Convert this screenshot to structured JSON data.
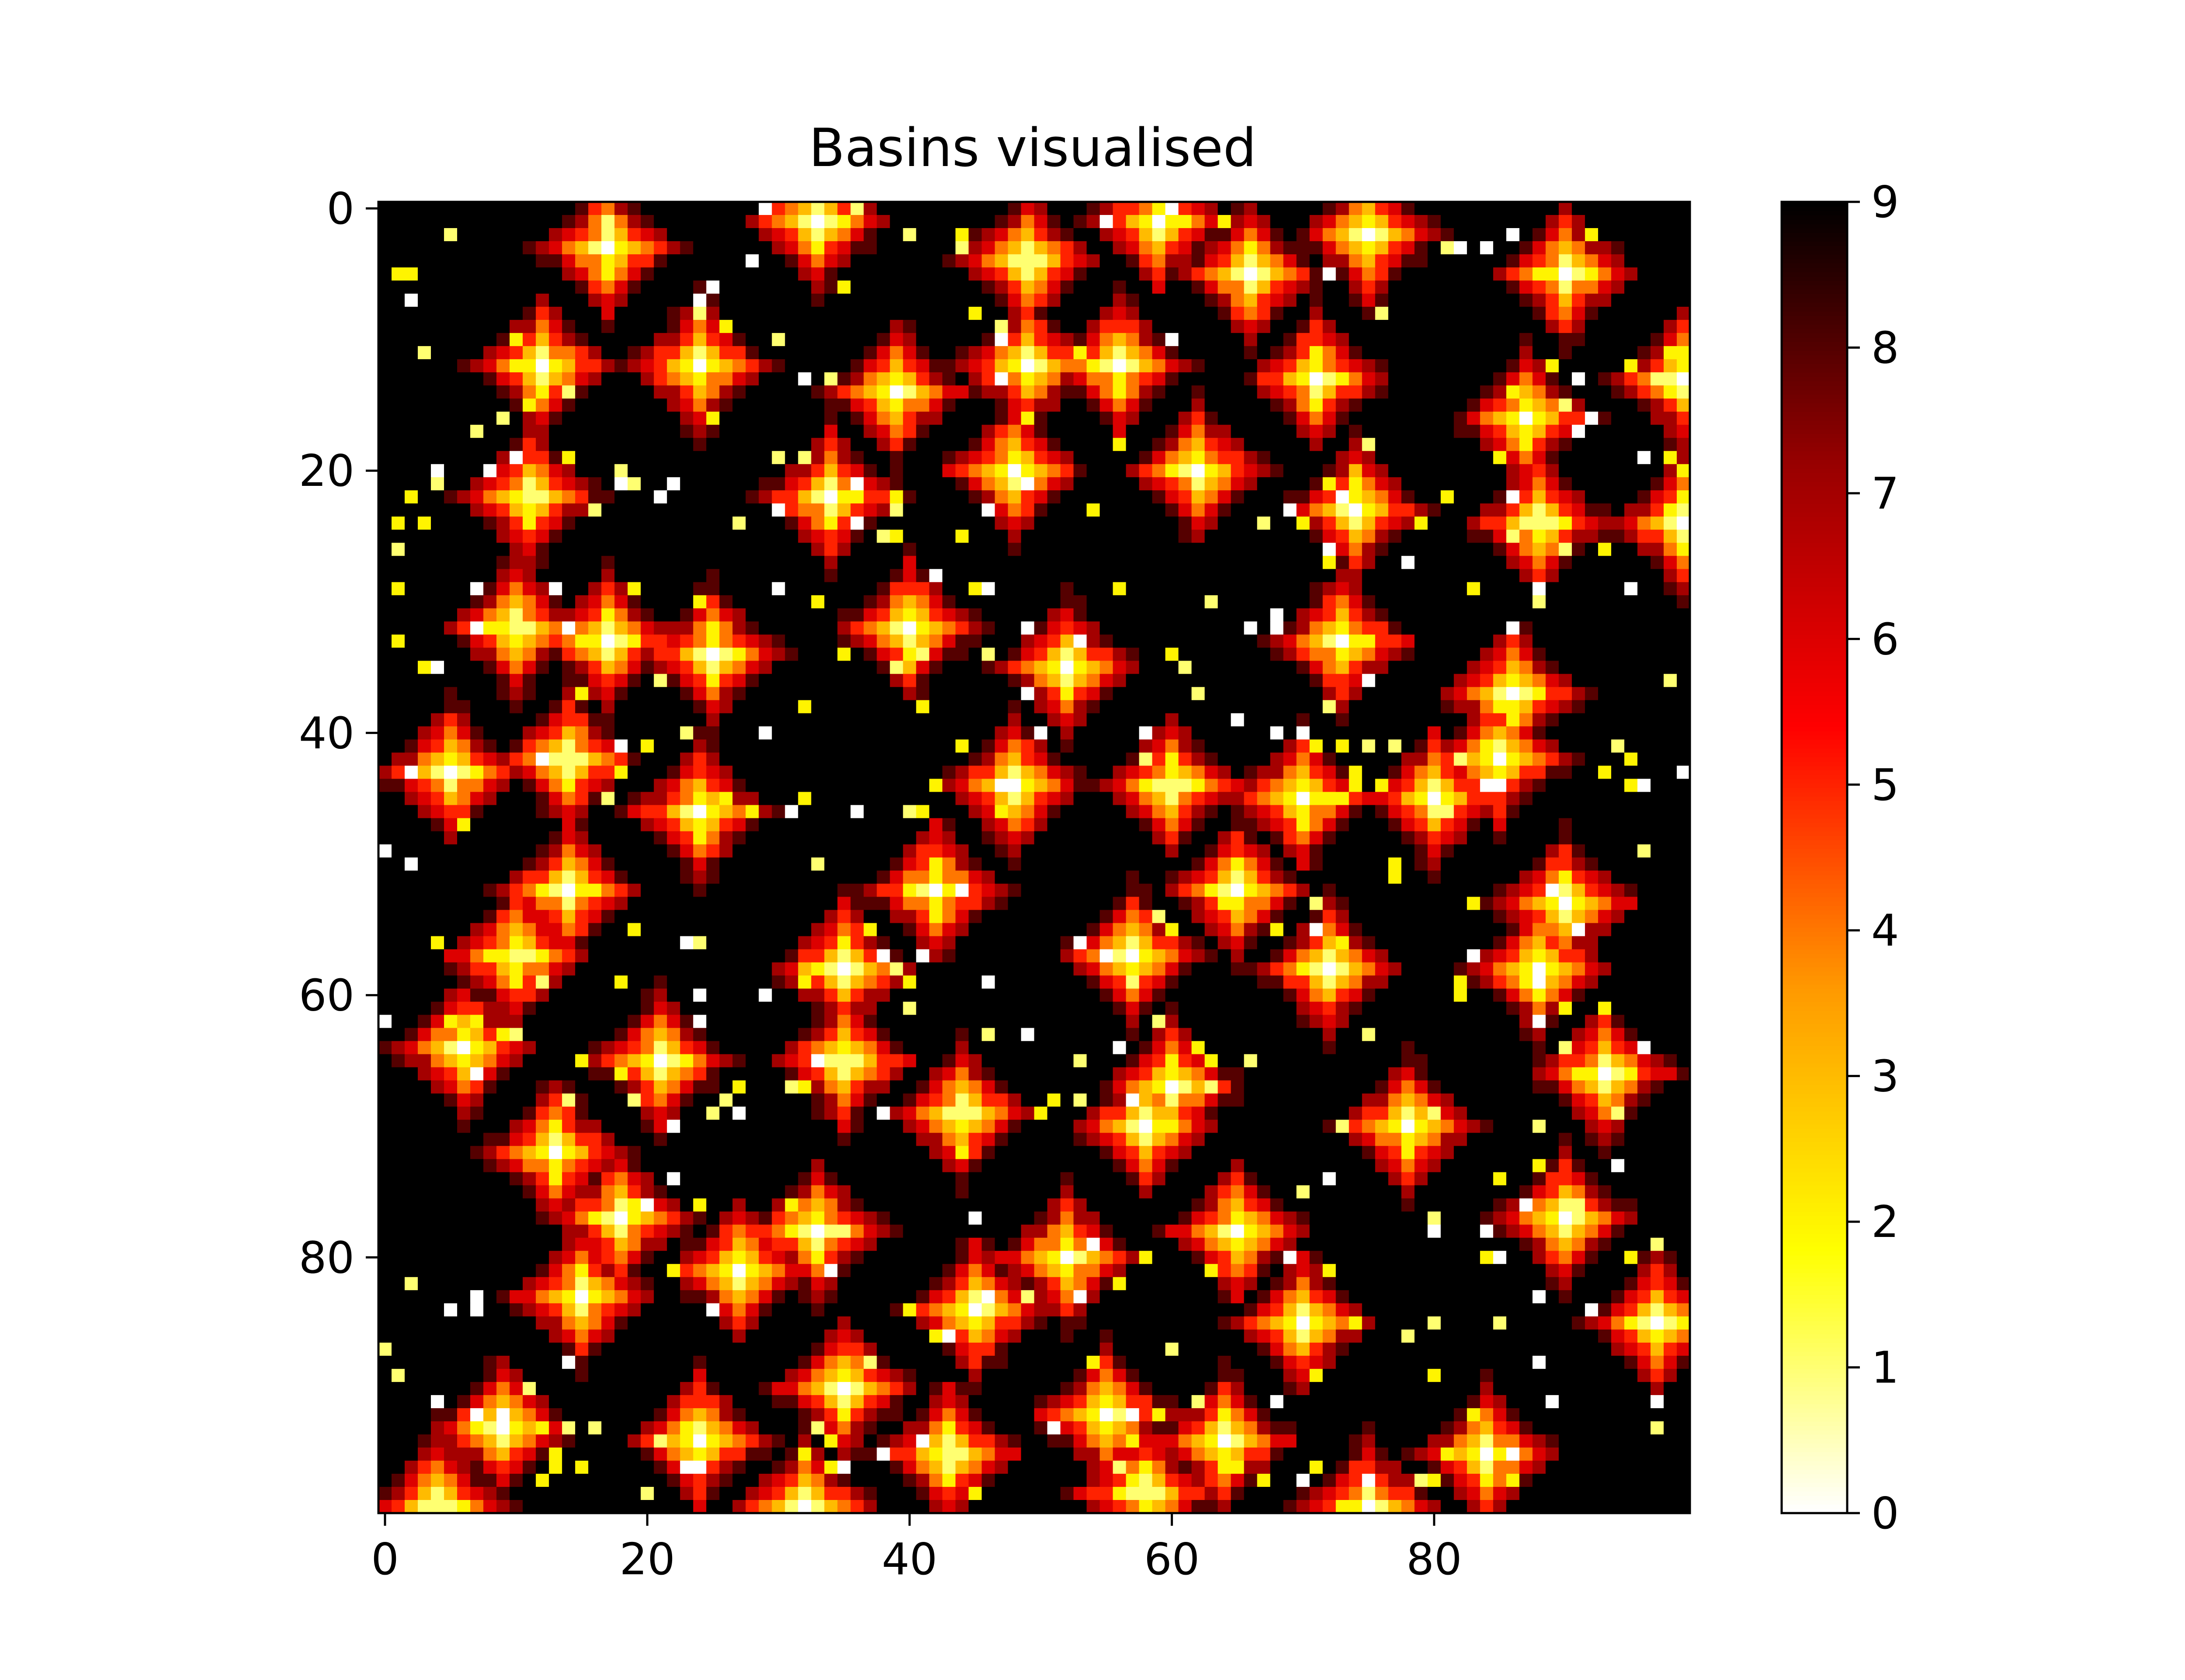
{
  "chart_data": {
    "type": "heatmap",
    "title": "Basins visualised",
    "xlabel": "",
    "ylabel": "",
    "grid_size": [
      100,
      100
    ],
    "xlim": [
      -0.5,
      99.5
    ],
    "ylim": [
      99.5,
      -0.5
    ],
    "x_ticks": [
      0,
      20,
      40,
      60,
      80
    ],
    "y_ticks": [
      0,
      20,
      40,
      60,
      80
    ],
    "x_tick_labels": [
      "0",
      "20",
      "40",
      "60",
      "80"
    ],
    "y_tick_labels": [
      "0",
      "20",
      "40",
      "60",
      "80"
    ],
    "value_range": [
      0,
      9
    ],
    "colormap": "hot_r",
    "colormap_stops": [
      "#ffffff",
      "#ffff00",
      "#ff9900",
      "#ff0000",
      "#990000",
      "#000000"
    ],
    "colorbar_ticks": [
      0,
      1,
      2,
      3,
      4,
      5,
      6,
      7,
      8,
      9
    ],
    "colorbar_tick_labels": [
      "0",
      "1",
      "2",
      "3",
      "4",
      "5",
      "6",
      "7",
      "8",
      "9"
    ],
    "basin_centers_approx": [
      [
        3,
        17
      ],
      [
        1,
        33
      ],
      [
        4,
        49
      ],
      [
        1,
        59
      ],
      [
        5,
        66
      ],
      [
        2,
        75
      ],
      [
        5,
        90
      ],
      [
        12,
        12
      ],
      [
        12,
        24
      ],
      [
        14,
        39
      ],
      [
        12,
        49
      ],
      [
        12,
        56
      ],
      [
        13,
        71
      ],
      [
        16,
        87
      ],
      [
        13,
        99
      ],
      [
        22,
        11
      ],
      [
        22,
        34
      ],
      [
        20,
        48
      ],
      [
        20,
        62
      ],
      [
        23,
        74
      ],
      [
        24,
        88
      ],
      [
        24,
        99
      ],
      [
        32,
        10
      ],
      [
        33,
        17
      ],
      [
        34,
        25
      ],
      [
        32,
        40
      ],
      [
        35,
        52
      ],
      [
        33,
        73
      ],
      [
        37,
        86
      ],
      [
        43,
        5
      ],
      [
        42,
        14
      ],
      [
        46,
        24
      ],
      [
        44,
        48
      ],
      [
        44,
        60
      ],
      [
        45,
        70
      ],
      [
        45,
        80
      ],
      [
        42,
        85
      ],
      [
        52,
        14
      ],
      [
        52,
        42
      ],
      [
        52,
        65
      ],
      [
        53,
        90
      ],
      [
        57,
        10
      ],
      [
        58,
        35
      ],
      [
        57,
        57
      ],
      [
        58,
        72
      ],
      [
        58,
        88
      ],
      [
        64,
        6
      ],
      [
        65,
        21
      ],
      [
        65,
        35
      ],
      [
        67,
        60
      ],
      [
        66,
        93
      ],
      [
        69,
        44
      ],
      [
        72,
        13
      ],
      [
        70,
        58
      ],
      [
        70,
        78
      ],
      [
        77,
        18
      ],
      [
        78,
        33
      ],
      [
        80,
        52
      ],
      [
        78,
        65
      ],
      [
        77,
        90
      ],
      [
        83,
        15
      ],
      [
        81,
        27
      ],
      [
        84,
        45
      ],
      [
        85,
        70
      ],
      [
        85,
        97
      ],
      [
        90,
        35
      ],
      [
        92,
        55
      ],
      [
        94,
        64
      ],
      [
        93,
        9
      ],
      [
        94,
        24
      ],
      [
        95,
        43
      ],
      [
        95,
        84
      ],
      [
        99,
        4
      ],
      [
        99,
        32
      ],
      [
        98,
        58
      ],
      [
        99,
        75
      ]
    ]
  }
}
